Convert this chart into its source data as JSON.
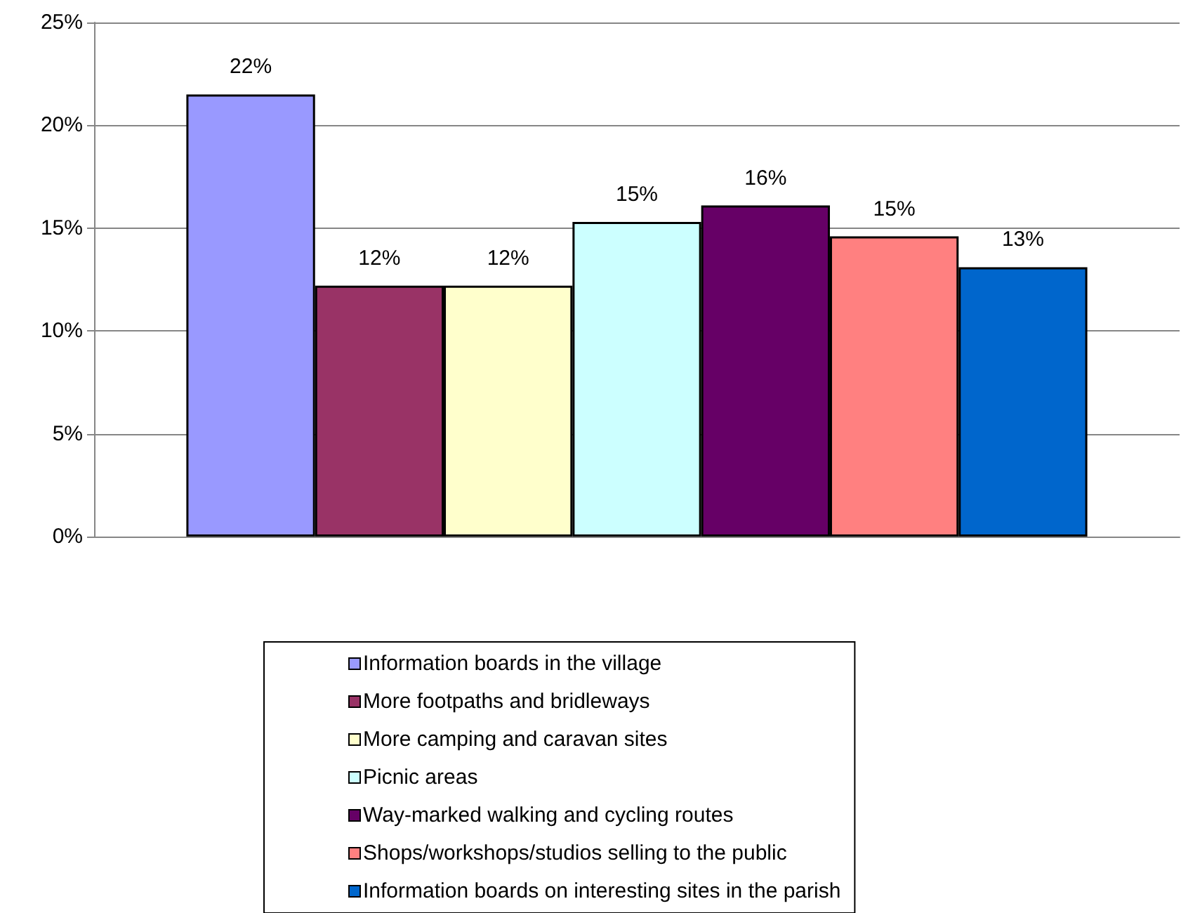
{
  "chart_data": {
    "type": "bar",
    "categories": [
      null
    ],
    "series": [
      {
        "name": "Information boards in the village",
        "color": "#9999ff",
        "values": [
          21.5
        ],
        "value_labels": [
          "22%"
        ]
      },
      {
        "name": "More footpaths and bridleways",
        "color": "#993366",
        "values": [
          12.2
        ],
        "value_labels": [
          "12%"
        ]
      },
      {
        "name": "More camping and caravan sites",
        "color": "#ffffcc",
        "values": [
          12.2
        ],
        "value_labels": [
          "12%"
        ]
      },
      {
        "name": "Picnic areas",
        "color": "#ccffff",
        "values": [
          15.3
        ],
        "value_labels": [
          "15%"
        ]
      },
      {
        "name": "Way-marked walking and cycling routes",
        "color": "#660066",
        "values": [
          16.1
        ],
        "value_labels": [
          "16%"
        ]
      },
      {
        "name": "Shops/workshops/studios selling to the public",
        "color": "#ff8080",
        "values": [
          14.6
        ],
        "value_labels": [
          "15%"
        ]
      },
      {
        "name": "Information boards on interesting sites in the parish",
        "color": "#0066cc",
        "values": [
          13.1
        ],
        "value_labels": [
          "13%"
        ]
      }
    ],
    "ylim": [
      0,
      25
    ],
    "yticks": [
      {
        "value": 0,
        "label": "0%"
      },
      {
        "value": 5,
        "label": "5%"
      },
      {
        "value": 10,
        "label": "10%"
      },
      {
        "value": 15,
        "label": "15%"
      },
      {
        "value": 20,
        "label": "20%"
      },
      {
        "value": 25,
        "label": "25%"
      }
    ],
    "grid": "y",
    "legend": "bottom"
  }
}
